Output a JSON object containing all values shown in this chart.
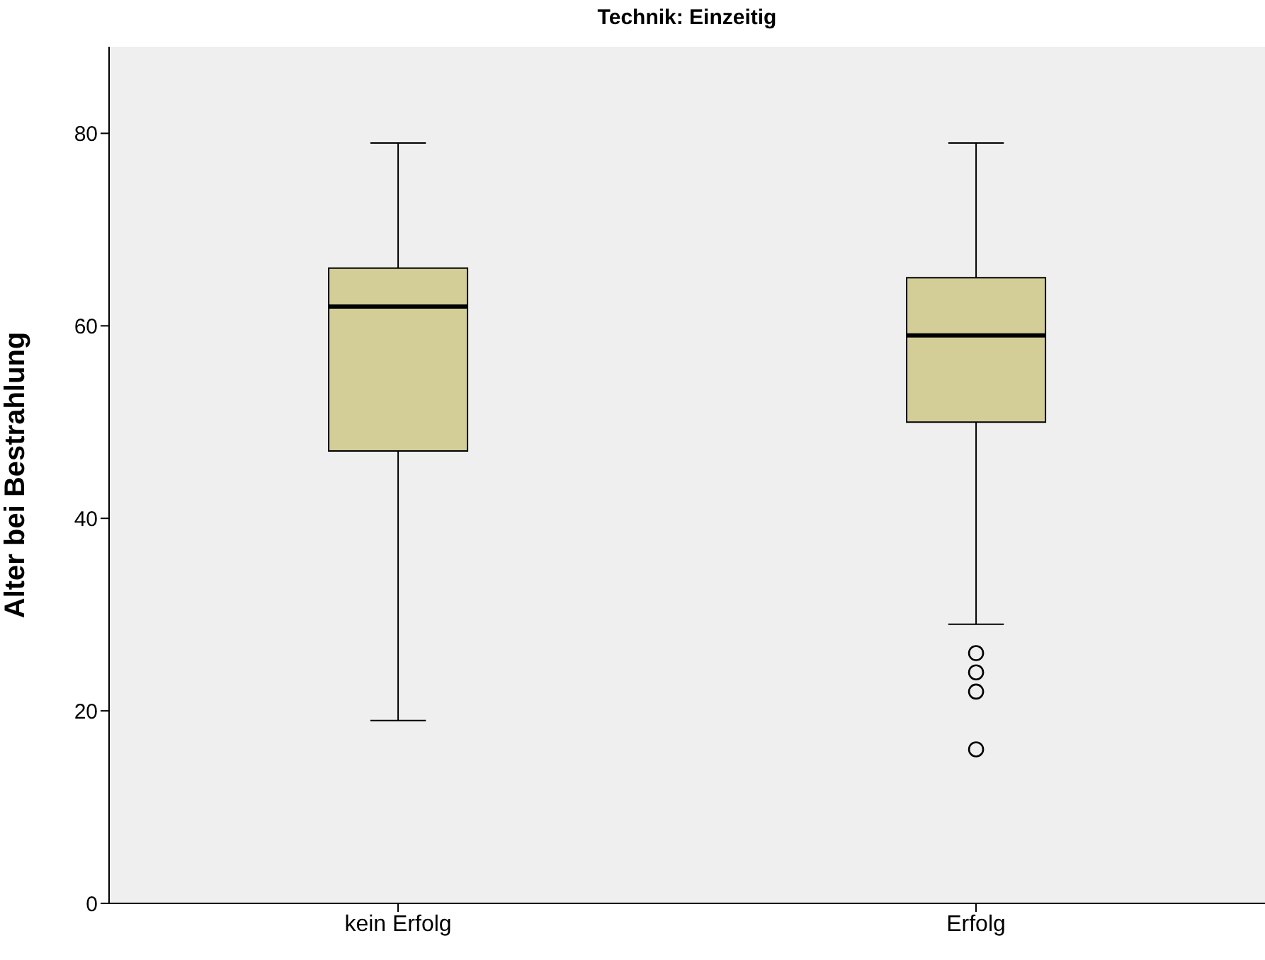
{
  "chart_data": {
    "type": "box",
    "title": "Technik: Einzeitig",
    "ylabel": "Alter bei Bestrahlung",
    "categories": [
      "kein Erfolg",
      "Erfolg"
    ],
    "color": "#d3ce98",
    "ylim": [
      0,
      89
    ],
    "yticks": [
      0,
      20,
      40,
      60,
      80
    ],
    "boxes": [
      {
        "low": 19,
        "q1": 47,
        "median": 62,
        "q3": 66,
        "high": 79
      },
      {
        "low": 29,
        "q1": 50,
        "median": 59,
        "q3": 65,
        "high": 79,
        "outliers": [
          26,
          24,
          22,
          16
        ]
      }
    ]
  }
}
